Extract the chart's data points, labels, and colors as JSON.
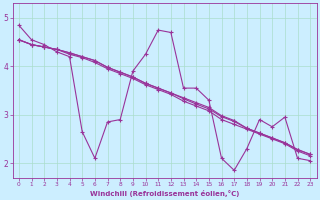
{
  "background_color": "#cceeff",
  "grid_color": "#aaddcc",
  "line_color": "#993399",
  "xlabel": "Windchill (Refroidissement éolien,°C)",
  "xlim": [
    -0.5,
    23.5
  ],
  "ylim": [
    1.7,
    5.3
  ],
  "yticks": [
    2,
    3,
    4,
    5
  ],
  "xticks": [
    0,
    1,
    2,
    3,
    4,
    5,
    6,
    7,
    8,
    9,
    10,
    11,
    12,
    13,
    14,
    15,
    16,
    17,
    18,
    19,
    20,
    21,
    22,
    23
  ],
  "series1": [
    4.85,
    4.55,
    4.45,
    4.3,
    4.2,
    2.65,
    2.1,
    2.85,
    2.9,
    3.9,
    4.25,
    4.75,
    4.7,
    3.55,
    3.55,
    3.3,
    2.1,
    1.85,
    2.3,
    2.9,
    2.75,
    2.95,
    2.1,
    2.05
  ],
  "series2": [
    4.55,
    4.45,
    4.4,
    4.35,
    4.25,
    4.18,
    4.08,
    3.95,
    3.85,
    3.75,
    3.62,
    3.52,
    3.42,
    3.28,
    3.18,
    3.08,
    2.9,
    2.8,
    2.7,
    2.6,
    2.5,
    2.4,
    2.25,
    2.15
  ],
  "series3": [
    4.55,
    4.45,
    4.4,
    4.35,
    4.28,
    4.2,
    4.12,
    3.98,
    3.88,
    3.78,
    3.65,
    3.55,
    3.45,
    3.33,
    3.22,
    3.12,
    2.96,
    2.86,
    2.72,
    2.62,
    2.52,
    2.42,
    2.28,
    2.18
  ],
  "series4": [
    4.55,
    4.45,
    4.4,
    4.35,
    4.28,
    4.2,
    4.12,
    3.98,
    3.88,
    3.78,
    3.65,
    3.55,
    3.45,
    3.35,
    3.25,
    3.15,
    2.98,
    2.88,
    2.72,
    2.62,
    2.52,
    2.42,
    2.28,
    2.18
  ]
}
